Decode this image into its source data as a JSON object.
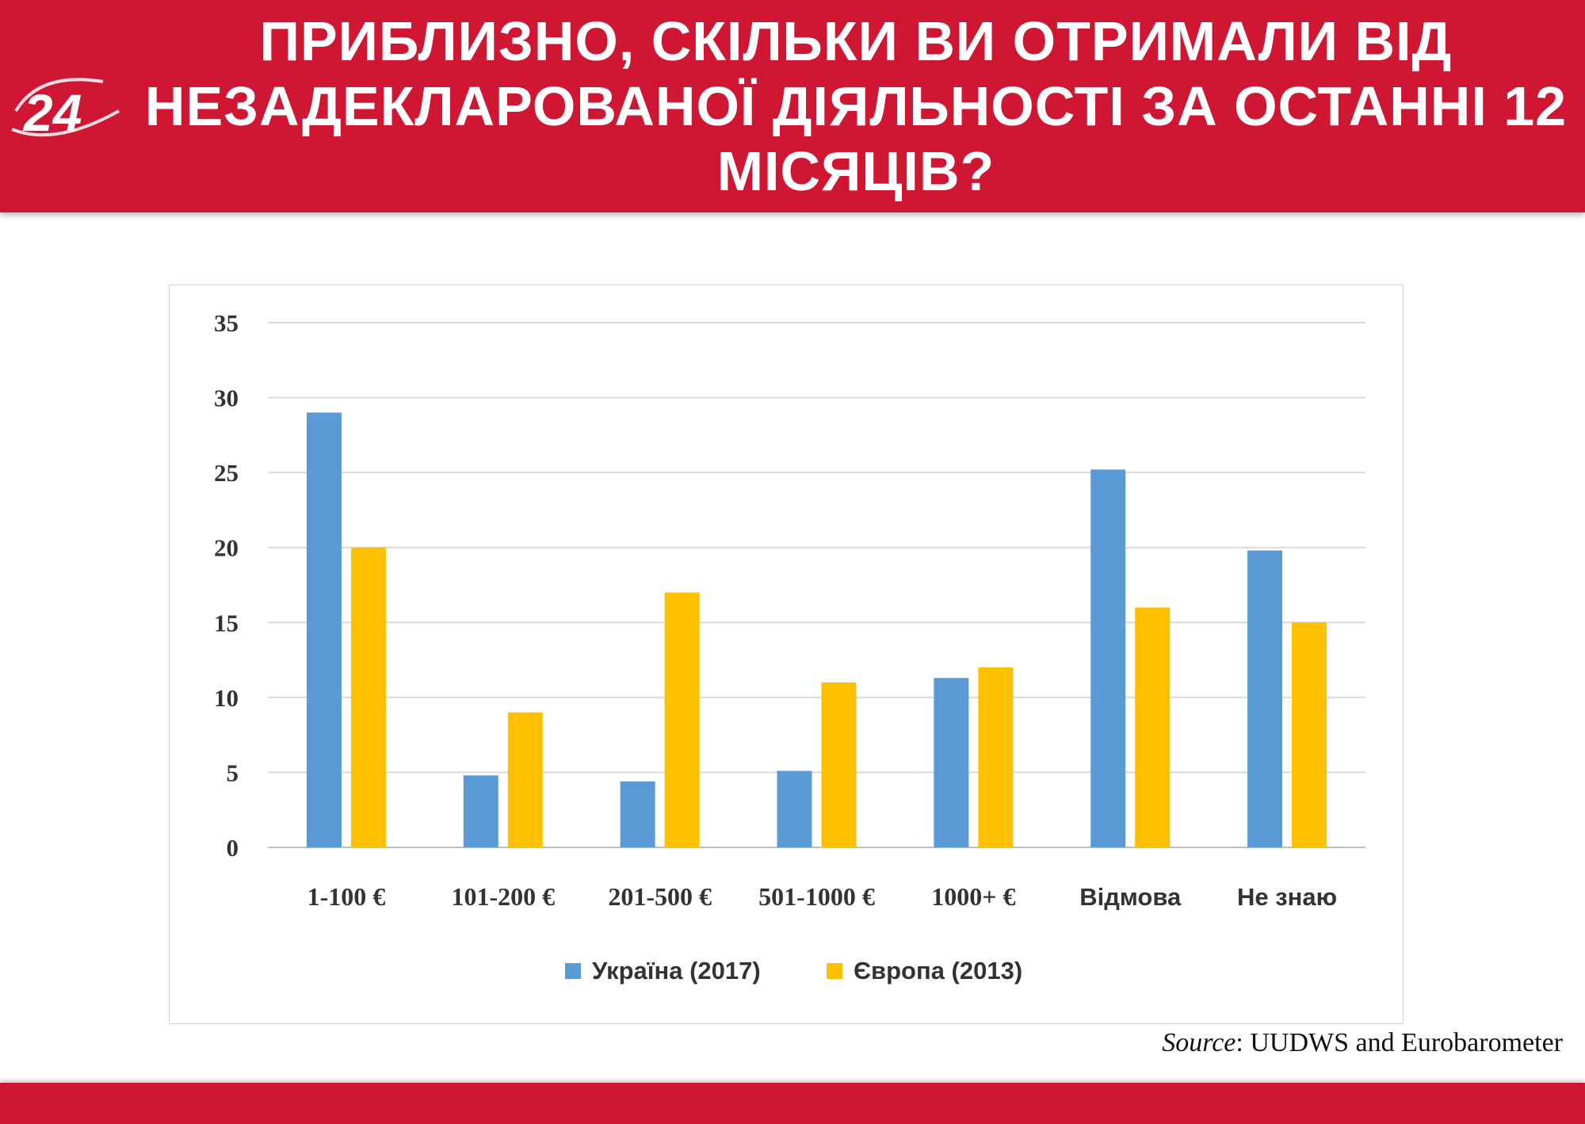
{
  "header": {
    "logo_text": "24",
    "title": "ПРИБЛИЗНО, СКІЛЬКИ ВИ ОТРИМАЛИ ВІД НЕЗАДЕКЛАРОВАНОЇ ДІЯЛЬНОСТІ ЗА ОСТАННІ 12 МІСЯЦІВ?",
    "background": "#cf1733"
  },
  "source": {
    "label": "Source",
    "text": ": UUDWS and Eurobarometer"
  },
  "chart_data": {
    "type": "bar",
    "categories": [
      "1-100 €",
      "101-200 €",
      "201-500 €",
      "501-1000 €",
      "1000+ €",
      "Відмова",
      "Не знаю"
    ],
    "series": [
      {
        "name": "Україна (2017)",
        "color": "#5b9bd5",
        "values": [
          29,
          4.8,
          4.4,
          5.1,
          11.3,
          25.2,
          19.8
        ]
      },
      {
        "name": "Європа (2013)",
        "color": "#ffc000",
        "values": [
          20,
          9,
          17,
          11,
          12,
          16,
          15
        ]
      }
    ],
    "yticks": [
      0,
      5,
      10,
      15,
      20,
      25,
      30,
      35
    ],
    "ylim": [
      0,
      35
    ],
    "grid": true,
    "legend_position": "bottom",
    "title": "",
    "xlabel": "",
    "ylabel": ""
  }
}
